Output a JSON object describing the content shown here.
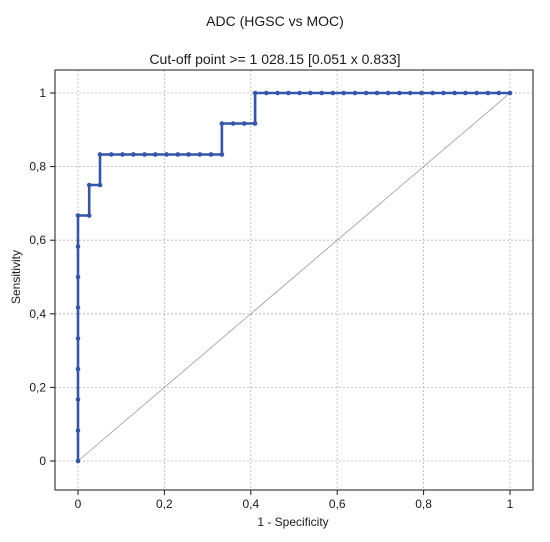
{
  "chart_data": {
    "type": "line",
    "title": "ADC (HGSC vs MOC)",
    "subtitle": "Cut-off point >= 1 028.15 [0.051 x 0.833]",
    "xlabel": "1 - Specificity",
    "ylabel": "Sensitivity",
    "xlim": [
      0,
      1
    ],
    "ylim": [
      0,
      1
    ],
    "grid": true,
    "x_ticks": [
      0,
      0.2,
      0.4,
      0.6,
      0.8,
      1
    ],
    "y_ticks": [
      0,
      0.2,
      0.4,
      0.6,
      0.8,
      1
    ],
    "x_tick_labels": [
      "0",
      "0,2",
      "0,4",
      "0,6",
      "0,8",
      "1"
    ],
    "y_tick_labels": [
      "0",
      "0,2",
      "0,4",
      "0,6",
      "0,8",
      "1"
    ],
    "series": [
      {
        "color": "#3355aa",
        "x": [
          0,
          0,
          0,
          0,
          0,
          0,
          0,
          0,
          0,
          0.026,
          0.026,
          0.051,
          0.051,
          0.077,
          0.103,
          0.128,
          0.154,
          0.179,
          0.205,
          0.231,
          0.256,
          0.282,
          0.308,
          0.333,
          0.333,
          0.359,
          0.385,
          0.41,
          0.41,
          0.436,
          0.462,
          0.487,
          0.513,
          0.538,
          0.564,
          0.59,
          0.615,
          0.641,
          0.667,
          0.692,
          0.718,
          0.744,
          0.769,
          0.795,
          0.821,
          0.846,
          0.872,
          0.897,
          0.923,
          0.949,
          0.974,
          1
        ],
        "y": [
          0,
          0.083,
          0.167,
          0.25,
          0.333,
          0.417,
          0.5,
          0.583,
          0.667,
          0.667,
          0.75,
          0.75,
          0.833,
          0.833,
          0.833,
          0.833,
          0.833,
          0.833,
          0.833,
          0.833,
          0.833,
          0.833,
          0.833,
          0.833,
          0.917,
          0.917,
          0.917,
          0.917,
          1,
          1,
          1,
          1,
          1,
          1,
          1,
          1,
          1,
          1,
          1,
          1,
          1,
          1,
          1,
          1,
          1,
          1,
          1,
          1,
          1,
          1,
          1,
          1
        ]
      }
    ],
    "reference_line": {
      "x": [
        0,
        1
      ],
      "y": [
        0,
        1
      ],
      "color": "#999999"
    }
  }
}
